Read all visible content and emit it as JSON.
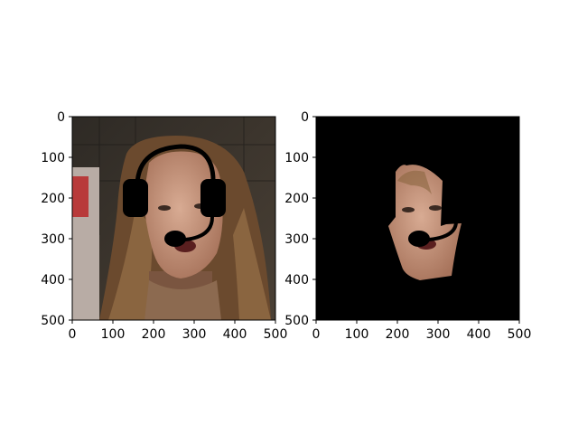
{
  "chart_data": [
    {
      "type": "image",
      "title": "",
      "xlabel": "",
      "ylabel": "",
      "xlim": [
        0,
        500
      ],
      "ylim": [
        500,
        0
      ],
      "x_ticks": [
        0,
        100,
        200,
        300,
        400,
        500
      ],
      "y_ticks": [
        0,
        100,
        200,
        300,
        400,
        500
      ],
      "content": "photo of woman's face with black headset overlay"
    },
    {
      "type": "image",
      "title": "",
      "xlabel": "",
      "ylabel": "",
      "xlim": [
        0,
        500
      ],
      "ylim": [
        500,
        0
      ],
      "x_ticks": [
        0,
        100,
        200,
        300,
        400,
        500
      ],
      "y_ticks": [
        0,
        100,
        200,
        300,
        400,
        500
      ],
      "content": "segmented face on black background with microphone overlay"
    }
  ],
  "colors": {
    "background_dark": "#3a332c",
    "hair": "#6b4a2e",
    "skin": "#c99a80",
    "headset": "#000000",
    "mask_background": "#000000"
  }
}
